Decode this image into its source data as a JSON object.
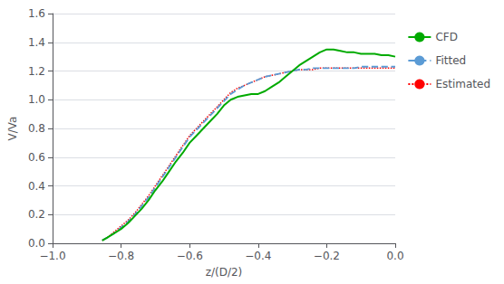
{
  "chart_data": {
    "type": "line",
    "xlabel": "z/(D/2)",
    "ylabel": "V/Va",
    "x": [
      -0.855,
      -0.84,
      -0.82,
      -0.8,
      -0.78,
      -0.76,
      -0.74,
      -0.72,
      -0.7,
      -0.68,
      -0.66,
      -0.64,
      -0.62,
      -0.6,
      -0.58,
      -0.56,
      -0.54,
      -0.52,
      -0.5,
      -0.48,
      -0.46,
      -0.44,
      -0.42,
      -0.4,
      -0.38,
      -0.36,
      -0.34,
      -0.32,
      -0.3,
      -0.28,
      -0.26,
      -0.24,
      -0.22,
      -0.2,
      -0.18,
      -0.16,
      -0.14,
      -0.12,
      -0.1,
      -0.08,
      -0.06,
      -0.04,
      -0.02,
      0.0
    ],
    "series": [
      {
        "name": "CFD",
        "color": "#00aa00",
        "line_style": "solid",
        "values": [
          0.02,
          0.04,
          0.07,
          0.1,
          0.14,
          0.19,
          0.24,
          0.3,
          0.37,
          0.43,
          0.5,
          0.57,
          0.63,
          0.7,
          0.75,
          0.8,
          0.85,
          0.9,
          0.96,
          1.0,
          1.02,
          1.03,
          1.04,
          1.04,
          1.06,
          1.09,
          1.12,
          1.16,
          1.2,
          1.24,
          1.27,
          1.3,
          1.33,
          1.35,
          1.35,
          1.34,
          1.33,
          1.33,
          1.32,
          1.32,
          1.32,
          1.31,
          1.31,
          1.3
        ]
      },
      {
        "name": "Fitted",
        "color": "#5b9bd5",
        "line_style": "dashed",
        "values": [
          0.02,
          0.04,
          0.07,
          0.11,
          0.15,
          0.2,
          0.26,
          0.32,
          0.39,
          0.46,
          0.53,
          0.6,
          0.67,
          0.74,
          0.79,
          0.84,
          0.89,
          0.94,
          0.99,
          1.04,
          1.07,
          1.1,
          1.12,
          1.14,
          1.16,
          1.17,
          1.18,
          1.19,
          1.2,
          1.21,
          1.21,
          1.22,
          1.22,
          1.22,
          1.22,
          1.22,
          1.22,
          1.22,
          1.23,
          1.23,
          1.23,
          1.23,
          1.23,
          1.23
        ]
      },
      {
        "name": "Estimated",
        "color": "#ff0000",
        "line_style": "dotted",
        "values": [
          0.02,
          0.04,
          0.08,
          0.12,
          0.16,
          0.21,
          0.27,
          0.33,
          0.4,
          0.47,
          0.54,
          0.61,
          0.68,
          0.75,
          0.8,
          0.85,
          0.9,
          0.95,
          1.0,
          1.05,
          1.08,
          1.1,
          1.12,
          1.14,
          1.16,
          1.17,
          1.18,
          1.19,
          1.2,
          1.21,
          1.21,
          1.21,
          1.22,
          1.22,
          1.22,
          1.22,
          1.22,
          1.22,
          1.22,
          1.22,
          1.22,
          1.22,
          1.22,
          1.22
        ]
      }
    ],
    "xlim": [
      -1.0,
      0.0
    ],
    "ylim": [
      0.0,
      1.6
    ],
    "xticks": [
      {
        "value": -1.0,
        "label": "−1.0"
      },
      {
        "value": -0.8,
        "label": "−0.8"
      },
      {
        "value": -0.6,
        "label": "−0.6"
      },
      {
        "value": -0.4,
        "label": "−0.4"
      },
      {
        "value": -0.2,
        "label": "−0.2"
      },
      {
        "value": 0.0,
        "label": "0.0"
      }
    ],
    "yticks": [
      {
        "value": 0.0,
        "label": "0.0"
      },
      0.2,
      0.4,
      0.6,
      0.8,
      {
        "value": 1.0,
        "label": "1.0"
      },
      1.2,
      1.4,
      1.6
    ],
    "grid": true,
    "legend": "right"
  }
}
